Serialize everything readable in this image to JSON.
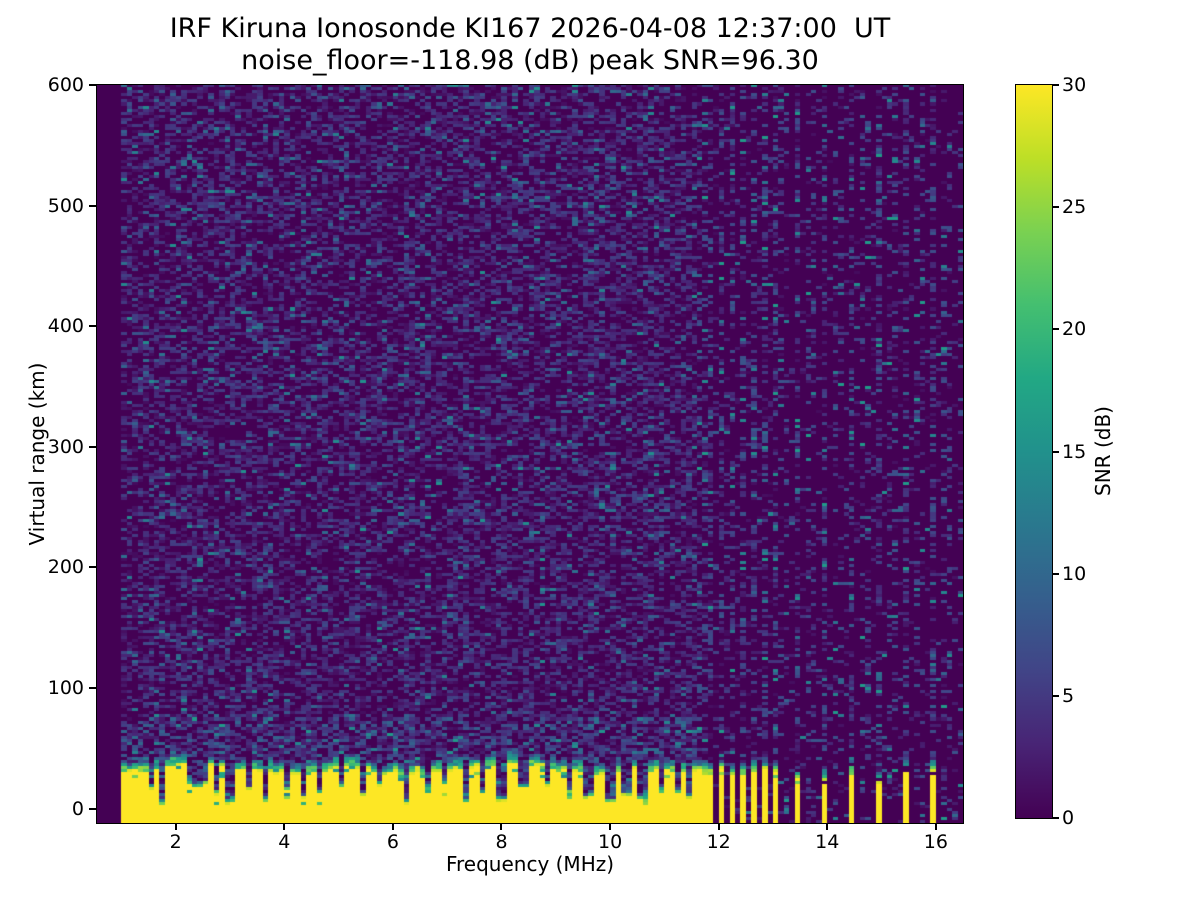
{
  "figure": {
    "title_line1": "IRF Kiruna Ionosonde KI167 2026-04-08 12:37:00  UT",
    "title_line2": "noise_floor=-118.98 (dB) peak SNR=96.30"
  },
  "chart_data": {
    "type": "heatmap",
    "title": "IRF Kiruna Ionosonde KI167 2026-04-08 12:37:00  UT",
    "subtitle": "noise_floor=-118.98 (dB) peak SNR=96.30",
    "xlabel": "Frequency (MHz)",
    "ylabel": "Virtual range (km)",
    "colorbar_label": "SNR (dB)",
    "xlim": [
      0.55,
      16.5
    ],
    "ylim": [
      -12,
      600
    ],
    "clim": [
      0,
      30
    ],
    "xticks": [
      2,
      4,
      6,
      8,
      10,
      12,
      14,
      16
    ],
    "yticks": [
      0,
      100,
      200,
      300,
      400,
      500,
      600
    ],
    "colorbar_ticks": [
      0,
      5,
      10,
      15,
      20,
      25,
      30
    ],
    "grid": false,
    "colormap": {
      "name": "viridis",
      "stops": [
        [
          0.0,
          "#440154"
        ],
        [
          0.1,
          "#482475"
        ],
        [
          0.2,
          "#414487"
        ],
        [
          0.3,
          "#355f8d"
        ],
        [
          0.4,
          "#2a788e"
        ],
        [
          0.5,
          "#21918c"
        ],
        [
          0.6,
          "#22a884"
        ],
        [
          0.7,
          "#44bf70"
        ],
        [
          0.8,
          "#7ad151"
        ],
        [
          0.9,
          "#bddf26"
        ],
        [
          1.0,
          "#fde725"
        ]
      ]
    },
    "sampling": {
      "freq_start": 1.0,
      "freq_stop": 16.5,
      "freq_step": 0.1,
      "range_step_km": 2.5
    },
    "ground_clutter": {
      "continuous_band": {
        "f_min": 1.0,
        "f_max": 11.62,
        "top_km_mean": 32,
        "top_km_spread": 6,
        "fringe_km": 10,
        "snr_db": 30
      },
      "notches": [
        {
          "f": 1.55,
          "depth_km": 14
        },
        {
          "f": 1.78,
          "depth_km": 3
        },
        {
          "f": 2.28,
          "depth_km": 18
        },
        {
          "f": 2.52,
          "depth_km": 20
        },
        {
          "f": 2.72,
          "depth_km": 12
        },
        {
          "f": 3.02,
          "depth_km": 4
        },
        {
          "f": 3.35,
          "depth_km": 16
        },
        {
          "f": 3.67,
          "depth_km": 5
        },
        {
          "f": 4.05,
          "depth_km": 18
        },
        {
          "f": 4.32,
          "depth_km": 9
        },
        {
          "f": 4.62,
          "depth_km": 15
        },
        {
          "f": 5.05,
          "depth_km": 17
        },
        {
          "f": 5.42,
          "depth_km": 12
        },
        {
          "f": 5.75,
          "depth_km": 18
        },
        {
          "f": 6.28,
          "depth_km": 4
        },
        {
          "f": 6.62,
          "depth_km": 14
        },
        {
          "f": 6.95,
          "depth_km": 18
        },
        {
          "f": 7.32,
          "depth_km": 5
        },
        {
          "f": 7.62,
          "depth_km": 12
        },
        {
          "f": 8.02,
          "depth_km": 7
        },
        {
          "f": 8.42,
          "depth_km": 14
        },
        {
          "f": 8.82,
          "depth_km": 17
        },
        {
          "f": 9.22,
          "depth_km": 18
        },
        {
          "f": 9.62,
          "depth_km": 10
        },
        {
          "f": 10.02,
          "depth_km": 5
        },
        {
          "f": 10.32,
          "depth_km": 13
        },
        {
          "f": 10.62,
          "depth_km": 7
        },
        {
          "f": 10.95,
          "depth_km": 14
        },
        {
          "f": 11.25,
          "depth_km": 11
        },
        {
          "f": 11.45,
          "depth_km": 9
        }
      ],
      "striped_band": {
        "f_min": 11.65,
        "f_max": 13.1,
        "stripe_freqs": [
          11.7,
          11.89,
          12.08,
          12.27,
          12.46,
          12.65,
          12.84,
          13.03
        ],
        "stripe_width_mhz": 0.1,
        "top_km_mean": 30
      },
      "sparse_stripes": {
        "freqs": [
          13.45,
          13.95,
          14.45,
          14.95,
          15.45,
          15.95
        ],
        "stripe_width_mhz": 0.1,
        "top_km_mean": 24
      }
    },
    "noise": {
      "background_snr_db": 0,
      "speckle_density_main": 0.52,
      "speckle_density_right": 0.1,
      "trail_density": 0.42,
      "faint_trail_density": 0.22,
      "low_altitude_boost_zone_km": 75,
      "weak_trail_freqs_main": [
        6.28,
        7.32,
        8.02,
        9.62,
        10.02,
        10.62
      ],
      "faint_trail_freqs_right": [
        13.2,
        13.7,
        14.2,
        14.7,
        15.2,
        15.7,
        16.2,
        16.45
      ],
      "seed": 20260408
    }
  }
}
